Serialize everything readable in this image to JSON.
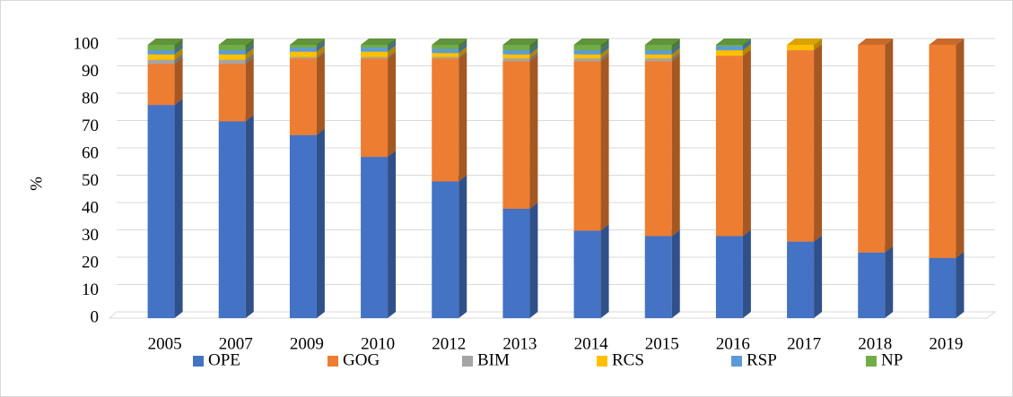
{
  "chart_data": {
    "type": "bar3d_stacked",
    "y_label": "%",
    "categories": [
      "2005",
      "2007",
      "2009",
      "2010",
      "2012",
      "2013",
      "2014",
      "2015",
      "2016",
      "2017",
      "2018",
      "2019"
    ],
    "series": [
      {
        "name": "OPE",
        "color": "#4472c4",
        "values": [
          78,
          72,
          67,
          59,
          50,
          40,
          32,
          30,
          30,
          28,
          24,
          22
        ]
      },
      {
        "name": "GOG",
        "color": "#ed7d31",
        "values": [
          15,
          21,
          28,
          36,
          45,
          54,
          62,
          64,
          66,
          70,
          76,
          78
        ]
      },
      {
        "name": "BIM",
        "color": "#a5a5a5",
        "values": [
          1.5,
          1.5,
          0.5,
          0.5,
          0.5,
          1,
          1,
          1,
          0,
          0,
          0,
          0
        ]
      },
      {
        "name": "RCS",
        "color": "#ffc000",
        "values": [
          2,
          2,
          2,
          2,
          1.5,
          1.5,
          1.5,
          1.5,
          2,
          2,
          0,
          0
        ]
      },
      {
        "name": "RSP",
        "color": "#5b9bd5",
        "values": [
          1.5,
          1.5,
          1.5,
          1.5,
          1.5,
          1.5,
          1.5,
          1.5,
          1.5,
          0,
          0,
          0
        ]
      },
      {
        "name": "NP",
        "color": "#70ad47",
        "values": [
          2,
          2,
          1,
          1,
          1.5,
          2,
          2,
          2,
          0.5,
          0,
          0,
          0
        ]
      }
    ],
    "ylim": [
      0,
      100
    ],
    "yticks": [
      0,
      10,
      20,
      30,
      40,
      50,
      60,
      70,
      80,
      90,
      100
    ],
    "grid": true,
    "legend": "bottom"
  }
}
